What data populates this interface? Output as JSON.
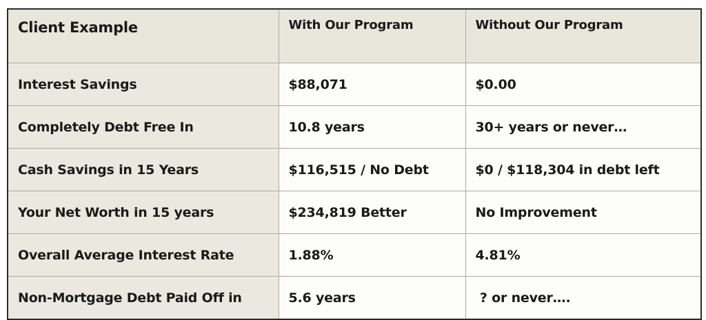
{
  "table": {
    "headers": [
      "Client Example",
      "With Our Program",
      "Without Our Program"
    ],
    "rows": [
      [
        "Interest Savings",
        "$88,071",
        "$0.00"
      ],
      [
        "Completely Debt Free In",
        "10.8 years",
        "30+ years or never…"
      ],
      [
        "Cash Savings in 15 Years",
        "$116,515 / No Debt",
        "$0 / $118,304 in debt left"
      ],
      [
        "Your Net Worth in 15 years",
        "$234,819 Better",
        "No Improvement"
      ],
      [
        "Overall Average Interest Rate",
        "1.88%",
        "4.81%"
      ],
      [
        "Non-Mortgage Debt Paid Off in",
        "5.6 years",
        " ? or never…."
      ]
    ]
  },
  "colors": {
    "header_bg": "#e9e6dc",
    "label_bg": "#ebe8df",
    "cell_bg": "#fdfdfc",
    "border": "#2a2a2a",
    "gridline": "#a9a9a9",
    "text": "#1a1a1a"
  }
}
